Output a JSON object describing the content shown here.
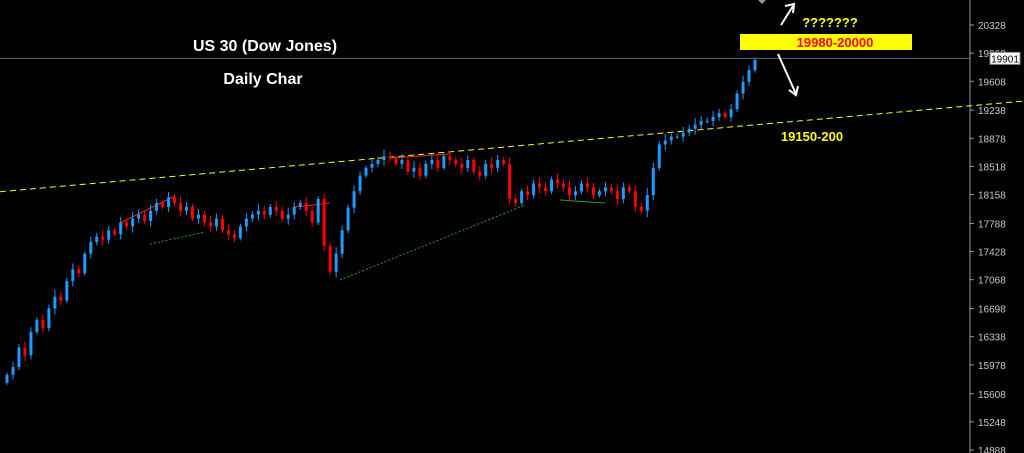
{
  "chart_data": {
    "type": "candlestick",
    "title": "US 30 (Dow Jones)",
    "subtitle": "Daily Char",
    "ylim": [
      14888,
      20328
    ],
    "y_ticks": [
      20328,
      19968,
      19608,
      19238,
      18878,
      18518,
      18158,
      17788,
      17428,
      17068,
      16698,
      16338,
      15978,
      15608,
      15248,
      14888
    ],
    "current_price": "19901",
    "colors": {
      "up": "#1e9bff",
      "down": "#ff0000",
      "background": "#000000",
      "trendline": "#ffff00",
      "price_line": "#5a6570"
    },
    "closes": [
      15850,
      15950,
      16200,
      16100,
      16400,
      16550,
      16450,
      16700,
      16850,
      16800,
      17050,
      17200,
      17150,
      17400,
      17550,
      17620,
      17580,
      17700,
      17650,
      17800,
      17750,
      17850,
      17900,
      17820,
      17950,
      18050,
      18000,
      18120,
      18050,
      17950,
      18000,
      17850,
      17900,
      17800,
      17750,
      17850,
      17700,
      17650,
      17600,
      17750,
      17850,
      17900,
      17950,
      17900,
      18000,
      17950,
      17850,
      17900,
      18000,
      18050,
      17950,
      17800,
      18100,
      17500,
      17170,
      17400,
      17700,
      17990,
      18200,
      18400,
      18500,
      18550,
      18600,
      18650,
      18620,
      18550,
      18600,
      18450,
      18500,
      18400,
      18550,
      18600,
      18500,
      18650,
      18600,
      18550,
      18500,
      18600,
      18450,
      18400,
      18550,
      18500,
      18600,
      18550,
      18100,
      18050,
      18200,
      18150,
      18300,
      18250,
      18200,
      18350,
      18300,
      18250,
      18150,
      18200,
      18300,
      18250,
      18150,
      18200,
      18250,
      18200,
      18100,
      18250,
      18200,
      18000,
      17950,
      18150,
      18500,
      18800,
      18850,
      18900,
      18900,
      18950,
      19000,
      19050,
      19100,
      19100,
      19150,
      19200,
      19150,
      19250,
      19450,
      19600,
      19750,
      19880
    ],
    "trendline": {
      "start": 18194,
      "end": 19355
    },
    "annotations": {
      "question": "???????",
      "target_zone": "19980-20000",
      "support_zone": "19150-200"
    }
  }
}
